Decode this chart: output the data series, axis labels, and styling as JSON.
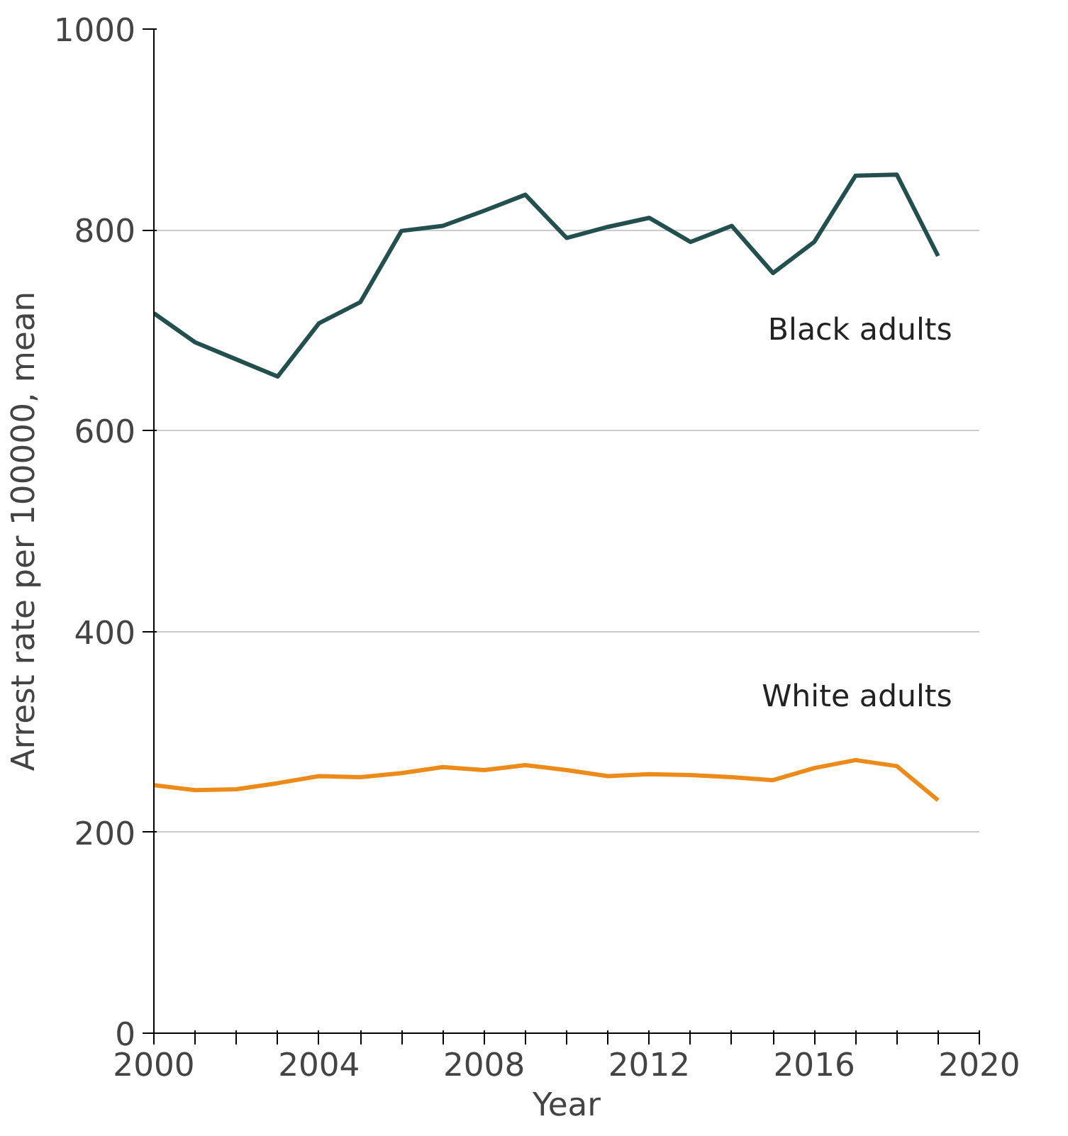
{
  "chart_data": {
    "type": "line",
    "xlabel": "Year",
    "ylabel": "Arrest rate per 100000, mean",
    "x": [
      2000,
      2001,
      2002,
      2003,
      2004,
      2005,
      2006,
      2007,
      2008,
      2009,
      2010,
      2011,
      2012,
      2013,
      2014,
      2015,
      2016,
      2017,
      2018,
      2019
    ],
    "series": [
      {
        "name": "Black adults",
        "color": "#23504f",
        "values": [
          717,
          688,
          671,
          654,
          707,
          728,
          799,
          804,
          819,
          835,
          792,
          803,
          812,
          788,
          804,
          757,
          788,
          854,
          855,
          774
        ]
      },
      {
        "name": "White adults",
        "color": "#ec8b1a",
        "values": [
          247,
          242,
          243,
          249,
          256,
          255,
          259,
          265,
          262,
          267,
          262,
          256,
          258,
          257,
          255,
          252,
          264,
          272,
          266,
          232
        ]
      }
    ],
    "xlim": [
      2000,
      2020
    ],
    "xticks": [
      2000,
      {
        "value": 2001,
        "label": null
      },
      {
        "value": 2002,
        "label": null
      },
      {
        "value": 2003,
        "label": null
      },
      2004,
      {
        "value": 2005,
        "label": null
      },
      {
        "value": 2006,
        "label": null
      },
      {
        "value": 2007,
        "label": null
      },
      2008,
      {
        "value": 2009,
        "label": null
      },
      {
        "value": 2010,
        "label": null
      },
      {
        "value": 2011,
        "label": null
      },
      2012,
      {
        "value": 2013,
        "label": null
      },
      {
        "value": 2014,
        "label": null
      },
      {
        "value": 2015,
        "label": null
      },
      2016,
      {
        "value": 2017,
        "label": null
      },
      {
        "value": 2018,
        "label": null
      },
      {
        "value": 2019,
        "label": null
      },
      2020
    ],
    "ylim": [
      0,
      1000
    ],
    "yticks": [
      0,
      200,
      400,
      600,
      800,
      1000
    ],
    "grid": "y",
    "legend": false,
    "marker": "none",
    "line_style": "solid"
  }
}
